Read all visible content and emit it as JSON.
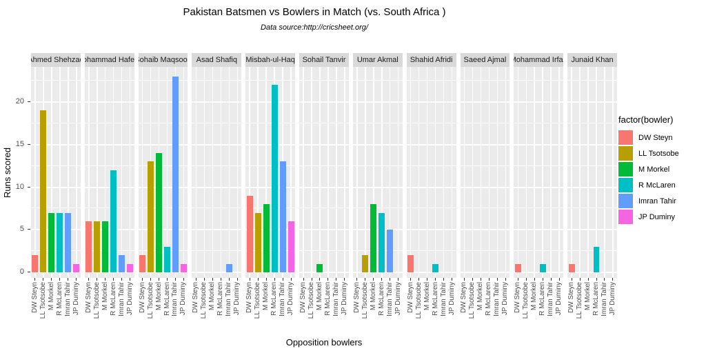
{
  "header": {
    "title": "Pakistan Batsmen vs Bowlers in Match (vs. South Africa )",
    "subtitle": "Data source:http://cricsheet.org/"
  },
  "axes": {
    "x_label": "Opposition bowlers",
    "y_label": "Runs scored"
  },
  "legend": {
    "title": "factor(bowler)"
  },
  "theme_colors": {
    "panel_bg": "#EBEBEB",
    "strip_bg": "#D9D9D9",
    "grid": "#FFFFFF",
    "axis_text": "#4D4D4D",
    "tick_mark": "#333333"
  },
  "chart_data": {
    "type": "bar",
    "title": "Pakistan Batsmen vs Bowlers in Match (vs. South Africa )",
    "subtitle": "Data source:http://cricsheet.org/",
    "xlabel": "Opposition bowlers",
    "ylabel": "Runs scored",
    "legend_title": "factor(bowler)",
    "legend_position": "right",
    "grid": true,
    "facet_by": "batsman",
    "ylim": [
      0,
      24.2
    ],
    "y_ticks": [
      0,
      5,
      10,
      15,
      20
    ],
    "y_minor_ticks": [
      2.5,
      7.5,
      12.5,
      17.5,
      22.5
    ],
    "categories": [
      "DW Steyn",
      "LL Tsotsobe",
      "M Morkel",
      "R McLaren",
      "Imran Tahir",
      "JP Duminy"
    ],
    "series_colors": [
      "#F8766D",
      "#B79F00",
      "#00BA38",
      "#00BFC4",
      "#619CFF",
      "#F564E3"
    ],
    "facets": [
      {
        "name": "Ahmed Shehzad",
        "values": [
          2,
          19,
          7,
          7,
          7,
          1
        ]
      },
      {
        "name": "Mohammad Hafeez",
        "values": [
          6,
          6,
          6,
          12,
          2,
          1
        ]
      },
      {
        "name": "Sohaib Maqsood",
        "values": [
          2,
          13,
          14,
          3,
          23,
          1
        ]
      },
      {
        "name": "Asad Shafiq",
        "values": [
          0,
          0,
          0,
          0,
          1,
          0
        ]
      },
      {
        "name": "Misbah-ul-Haq",
        "values": [
          9,
          7,
          8,
          22,
          13,
          6
        ]
      },
      {
        "name": "Sohail Tanvir",
        "values": [
          0,
          0,
          1,
          0,
          0,
          0
        ]
      },
      {
        "name": "Umar Akmal",
        "values": [
          0,
          2,
          8,
          7,
          5,
          0
        ]
      },
      {
        "name": "Shahid Afridi",
        "values": [
          2,
          0,
          0,
          1,
          0,
          0
        ]
      },
      {
        "name": "Saeed Ajmal",
        "values": [
          0,
          0,
          0,
          0,
          0,
          0
        ]
      },
      {
        "name": "Mohammad Irfan",
        "values": [
          1,
          0,
          0,
          1,
          0,
          0
        ]
      },
      {
        "name": "Junaid Khan",
        "values": [
          1,
          0,
          0,
          3,
          0,
          0
        ]
      }
    ]
  }
}
